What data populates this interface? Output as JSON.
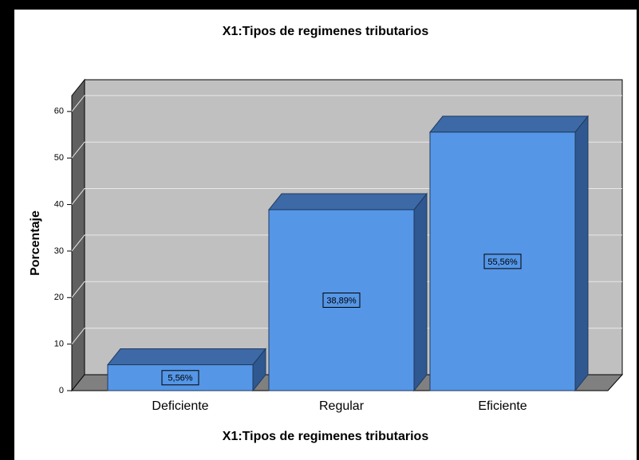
{
  "chart_data": {
    "type": "bar3d",
    "title": "X1:Tipos de regimenes tributarios",
    "x_label": "X1:Tipos de regimenes tributarios",
    "y_label": "Porcentaje",
    "categories": [
      "Deficiente",
      "Regular",
      "Eficiente"
    ],
    "values": [
      5.56,
      38.89,
      55.56
    ],
    "value_labels": [
      "5,56%",
      "38,89%",
      "55,56%"
    ],
    "color": "#5596e6",
    "ylim": [
      0,
      63.4
    ],
    "yticks": [
      0,
      10,
      20,
      30,
      40,
      50,
      60
    ],
    "grid": true
  }
}
